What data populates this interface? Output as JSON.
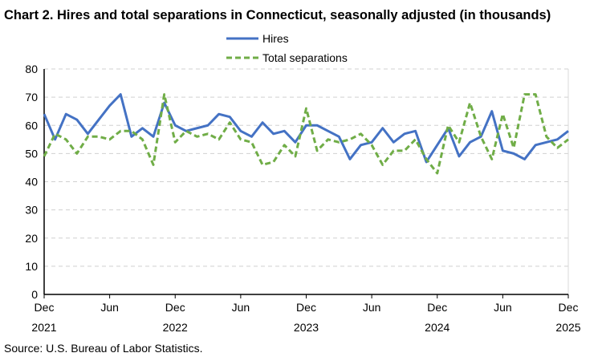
{
  "chart_data": {
    "type": "line",
    "title": "Chart 2. Hires and total separations in Connecticut, seasonally adjusted (in thousands)",
    "source": "Source: U.S. Bureau of Labor Statistics.",
    "legend_placement": "top-center",
    "grid": "horizontal dashed",
    "ylim": [
      0,
      80
    ],
    "yticks": [
      "0",
      "10",
      "20",
      "30",
      "40",
      "50",
      "60",
      "70",
      "80"
    ],
    "xlim": [
      "2021-12",
      "2025-12"
    ],
    "xticks": [
      {
        "month": "Dec",
        "year": "2021"
      },
      {
        "month": "Jun",
        "year": ""
      },
      {
        "month": "Dec",
        "year": "2022"
      },
      {
        "month": "Jun",
        "year": ""
      },
      {
        "month": "Dec",
        "year": "2023"
      },
      {
        "month": "Jun",
        "year": ""
      },
      {
        "month": "Dec",
        "year": "2024"
      },
      {
        "month": "Jun",
        "year": ""
      },
      {
        "month": "Dec",
        "year": "2025"
      }
    ],
    "series": [
      {
        "name": "Hires",
        "color": "#4472c4",
        "style": "solid",
        "values": [
          64,
          55,
          64,
          62,
          57,
          62,
          67,
          71,
          56,
          59,
          56,
          68,
          60,
          58,
          59,
          60,
          64,
          63,
          58,
          56,
          61,
          57,
          58,
          54,
          60,
          60,
          58,
          56,
          48,
          53,
          54,
          59,
          54,
          57,
          58,
          47,
          53,
          59,
          49,
          54,
          56,
          65,
          51,
          50,
          48,
          53,
          54,
          55,
          58
        ]
      },
      {
        "name": "Total separations",
        "color": "#70ad47",
        "style": "dashed",
        "values": [
          49,
          57,
          55,
          50,
          56,
          56,
          55,
          58,
          58,
          55,
          46,
          71,
          54,
          58,
          56,
          57,
          55,
          61,
          55,
          54,
          46,
          47,
          53,
          49,
          66,
          51,
          55,
          54,
          55,
          57,
          53,
          46,
          51,
          51,
          55,
          48,
          43,
          60,
          54,
          68,
          56,
          48,
          64,
          52,
          71,
          71,
          56,
          52,
          55
        ]
      }
    ]
  }
}
